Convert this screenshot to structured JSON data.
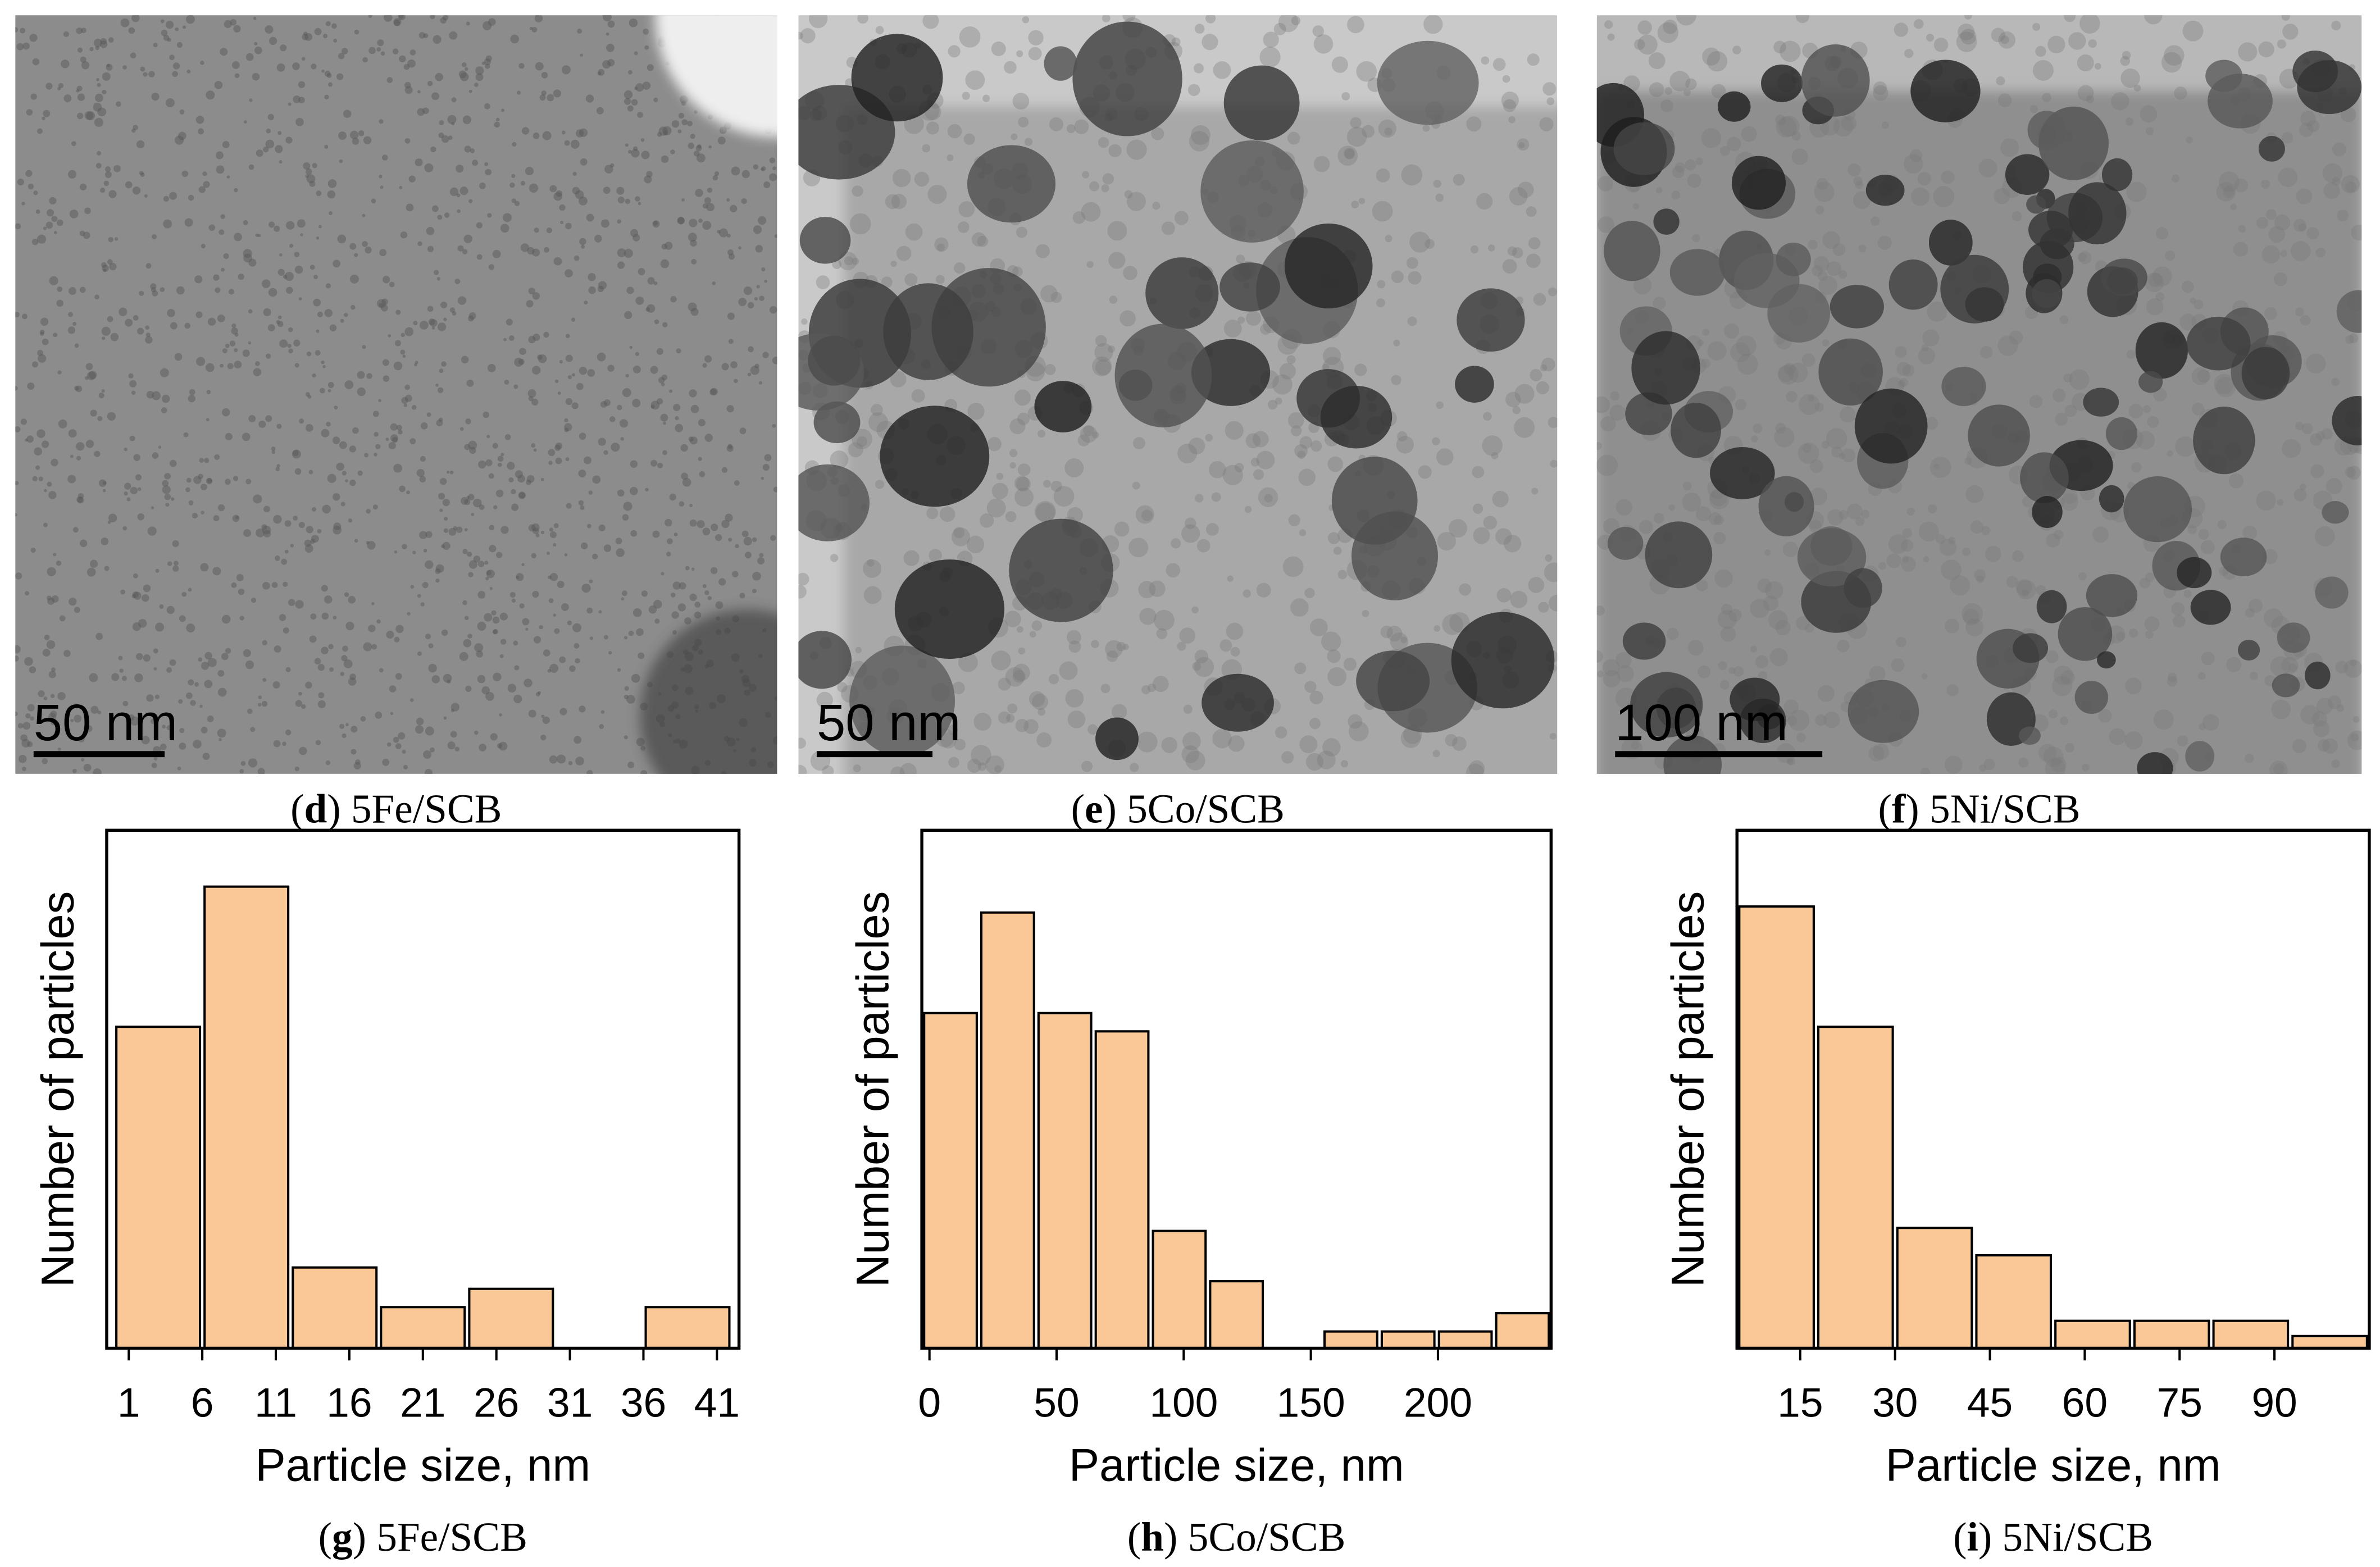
{
  "images": [
    {
      "scale_bar": "50 nm",
      "caption": {
        "open": "(",
        "letter": "d",
        "rest": ") 5Fe/SCB"
      }
    },
    {
      "scale_bar": "50 nm",
      "caption": {
        "open": "(",
        "letter": "e",
        "rest": ") 5Co/SCB"
      }
    },
    {
      "scale_bar": "100 nm",
      "caption": {
        "open": "(",
        "letter": "f",
        "rest": ") 5Ni/SCB"
      }
    }
  ],
  "chart_data": [
    {
      "type": "histogram",
      "xlabel": "Particle size, nm",
      "ylabel": "Number of particles",
      "bins": [
        0,
        6,
        12,
        18,
        24,
        30,
        36,
        42
      ],
      "counts": [
        211,
        303,
        53,
        27,
        39,
        0,
        27
      ],
      "xlim": [
        -0.5,
        42.5
      ],
      "ylim": [
        0,
        340
      ],
      "xticks": [
        1,
        6,
        11,
        16,
        21,
        26,
        31,
        36,
        41
      ],
      "color": "#f9c896",
      "caption": {
        "open": "(",
        "letter": "g",
        "rest": ") 5Fe/SCB"
      }
    },
    {
      "type": "histogram",
      "xlabel": "Particle size, nm",
      "ylabel": "Number of particles",
      "bins": [
        -3,
        19.5,
        42,
        64.5,
        87,
        109.5,
        132,
        154.5,
        177,
        199.5,
        222,
        244.5
      ],
      "counts": [
        220,
        286,
        220,
        208,
        77,
        44,
        0,
        11,
        11,
        11,
        23
      ],
      "xlim": [
        -3,
        244.5
      ],
      "ylim": [
        0,
        340
      ],
      "xticks": [
        0,
        50,
        100,
        150,
        200
      ],
      "color": "#f9c896",
      "caption": {
        "open": "(",
        "letter": "h",
        "rest": ") 5Co/SCB"
      }
    },
    {
      "type": "histogram",
      "xlabel": "Particle size, nm",
      "ylabel": "Number of particles",
      "bins": [
        5,
        17.5,
        30,
        42.5,
        55,
        67.5,
        80,
        92.5,
        105
      ],
      "counts": [
        290,
        211,
        79,
        61,
        18,
        18,
        18,
        8
      ],
      "xlim": [
        5,
        105
      ],
      "ylim": [
        0,
        340
      ],
      "xticks": [
        15,
        30,
        45,
        60,
        75,
        90
      ],
      "color": "#f9c896",
      "caption": {
        "open": "(",
        "letter": "i",
        "rest": ") 5Ni/SCB"
      }
    }
  ]
}
